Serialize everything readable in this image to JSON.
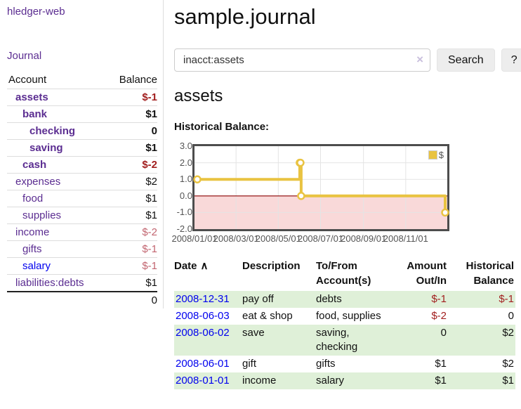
{
  "brand": "hledger-web",
  "sidebar": {
    "journal_link": "Journal",
    "accounts": {
      "header_account": "Account",
      "header_balance": "Balance",
      "rows": [
        {
          "name": "assets",
          "balance": "$-1"
        },
        {
          "name": "bank",
          "balance": "$1"
        },
        {
          "name": "checking",
          "balance": "0"
        },
        {
          "name": "saving",
          "balance": "$1"
        },
        {
          "name": "cash",
          "balance": "$-2"
        },
        {
          "name": "expenses",
          "balance": "$2"
        },
        {
          "name": "food",
          "balance": "$1"
        },
        {
          "name": "supplies",
          "balance": "$1"
        },
        {
          "name": "income",
          "balance": "$-2"
        },
        {
          "name": "gifts",
          "balance": "$-1"
        },
        {
          "name": "salary",
          "balance": "$-1"
        },
        {
          "name": "liabilities:debts",
          "balance": "$1"
        }
      ],
      "total": "0"
    }
  },
  "main": {
    "title": "sample.journal",
    "search": {
      "value": "inacct:assets",
      "clear_icon": "×",
      "search_button": "Search",
      "help_button": "?"
    },
    "account_heading": "assets",
    "chart_label": "Historical Balance:",
    "register": {
      "headers": {
        "date": "Date",
        "sort_icon": "∧",
        "description": "Description",
        "account": "To/From Account(s)",
        "amount": "Amount Out/In",
        "balance": "Historical Balance"
      },
      "rows": [
        {
          "date": "2008-12-31",
          "description": "pay off",
          "account": "debts",
          "amount": "$-1",
          "balance": "$-1"
        },
        {
          "date": "2008-06-03",
          "description": "eat & shop",
          "account": "food, supplies",
          "amount": "$-2",
          "balance": "0"
        },
        {
          "date": "2008-06-02",
          "description": "save",
          "account": "saving, checking",
          "amount": "0",
          "balance": "$2"
        },
        {
          "date": "2008-06-01",
          "description": "gift",
          "account": "gifts",
          "amount": "$1",
          "balance": "$2"
        },
        {
          "date": "2008-01-01",
          "description": "income",
          "account": "salary",
          "amount": "$1",
          "balance": "$1"
        }
      ]
    }
  },
  "chart_data": {
    "type": "line",
    "title": "Historical Balance",
    "series": [
      {
        "name": "$",
        "step": true,
        "points": [
          [
            "2008-01-01",
            1
          ],
          [
            "2008-06-01",
            2
          ],
          [
            "2008-06-02",
            2
          ],
          [
            "2008-06-03",
            0
          ],
          [
            "2008-12-31",
            -1
          ]
        ]
      }
    ],
    "x_range": [
      "2008-01-01",
      "2008-12-31"
    ],
    "ylim": [
      -2.0,
      3.0
    ],
    "yticks": [
      3.0,
      2.0,
      1.0,
      0.0,
      -1.0,
      -2.0
    ],
    "xticks": [
      "2008/01/01",
      "2008/03/01",
      "2008/05/01",
      "2008/07/01",
      "2008/09/01",
      "2008/11/01"
    ],
    "legend": {
      "label": "$",
      "position": "top-right"
    },
    "grid": true,
    "series_color": "#e9c341",
    "negative_region_color": "#f9d9d9",
    "zero_line_color": "#8b0000"
  },
  "colors": {
    "link_purple": "#5b2d91",
    "link_blue": "#0000ee",
    "negative": "#a21f1f",
    "negative_faded": "#c26570",
    "row_stripe_green": "#dff0d8",
    "chart_border": "#4d4d4d",
    "button_bg": "#ededed"
  }
}
